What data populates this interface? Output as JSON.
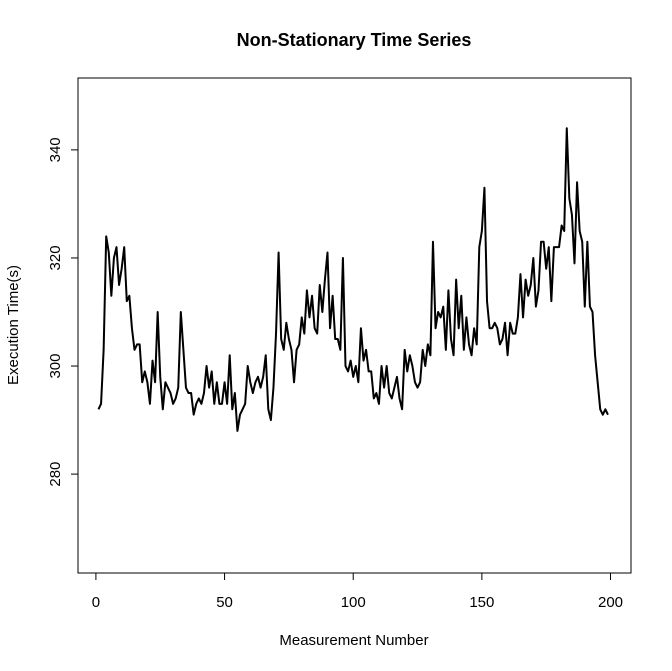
{
  "chart_data": {
    "type": "line",
    "title": "Non-Stationary Time Series",
    "x_label": "Measurement Number",
    "y_label": "Execution Time(s)",
    "x": [
      1,
      2,
      3,
      4,
      5,
      6,
      7,
      8,
      9,
      10,
      11,
      12,
      13,
      14,
      15,
      16,
      17,
      18,
      19,
      20,
      21,
      22,
      23,
      24,
      25,
      26,
      27,
      28,
      29,
      30,
      31,
      32,
      33,
      34,
      35,
      36,
      37,
      38,
      39,
      40,
      41,
      42,
      43,
      44,
      45,
      46,
      47,
      48,
      49,
      50,
      51,
      52,
      53,
      54,
      55,
      56,
      57,
      58,
      59,
      60,
      61,
      62,
      63,
      64,
      65,
      66,
      67,
      68,
      69,
      70,
      71,
      72,
      73,
      74,
      75,
      76,
      77,
      78,
      79,
      80,
      81,
      82,
      83,
      84,
      85,
      86,
      87,
      88,
      89,
      90,
      91,
      92,
      93,
      94,
      95,
      96,
      97,
      98,
      99,
      100,
      101,
      102,
      103,
      104,
      105,
      106,
      107,
      108,
      109,
      110,
      111,
      112,
      113,
      114,
      115,
      116,
      117,
      118,
      119,
      120,
      121,
      122,
      123,
      124,
      125,
      126,
      127,
      128,
      129,
      130,
      131,
      132,
      133,
      134,
      135,
      136,
      137,
      138,
      139,
      140,
      141,
      142,
      143,
      144,
      145,
      146,
      147,
      148,
      149,
      150,
      151,
      152,
      153,
      154,
      155,
      156,
      157,
      158,
      159,
      160,
      161,
      162,
      163,
      164,
      165,
      166,
      167,
      168,
      169,
      170,
      171,
      172,
      173,
      174,
      175,
      176,
      177,
      178,
      179,
      180,
      181,
      182,
      183,
      184,
      185,
      186,
      187,
      188,
      189,
      190,
      191,
      192,
      193,
      194,
      195,
      196,
      197,
      198,
      199
    ],
    "series": [
      {
        "color": "#000000",
        "values": [
          292,
          293,
          303,
          324,
          321,
          313,
          320,
          322,
          315,
          318,
          322,
          312,
          313,
          307,
          303,
          304,
          304,
          297,
          299,
          297,
          293,
          301,
          297,
          310,
          298,
          292,
          297,
          296,
          295,
          293,
          294,
          296,
          310,
          303,
          296,
          295,
          295,
          291,
          293,
          294,
          293,
          295,
          300,
          296,
          299,
          293,
          297,
          293,
          293,
          297,
          293,
          302,
          292,
          295,
          288,
          291,
          292,
          293,
          300,
          297,
          295,
          297,
          298,
          296,
          298,
          302,
          292,
          290,
          296,
          306,
          321,
          305,
          303,
          308,
          305,
          303,
          297,
          303,
          304,
          309,
          306,
          314,
          309,
          313,
          307,
          306,
          315,
          310,
          316,
          321,
          307,
          313,
          305,
          305,
          303,
          320,
          300,
          299,
          301,
          298,
          300,
          297,
          307,
          301,
          303,
          299,
          299,
          294,
          295,
          293,
          300,
          296,
          300,
          295,
          294,
          296,
          298,
          294,
          292,
          303,
          299,
          302,
          300,
          297,
          296,
          297,
          303,
          300,
          304,
          302,
          323,
          307,
          310,
          309,
          311,
          303,
          314,
          305,
          302,
          316,
          307,
          313,
          303,
          309,
          304,
          302,
          307,
          304,
          322,
          325,
          333,
          312,
          307,
          307,
          308,
          307,
          304,
          305,
          308,
          302,
          308,
          306,
          306,
          309,
          317,
          309,
          316,
          313,
          315,
          320,
          311,
          314,
          323,
          323,
          318,
          322,
          312,
          322,
          322,
          322,
          326,
          325,
          344,
          331,
          328,
          319,
          334,
          325,
          323,
          311,
          323,
          311,
          310,
          302,
          297,
          292,
          291,
          292,
          291
        ]
      }
    ],
    "xlim": [
      -6.96,
      207.96
    ],
    "ylim": [
      261.7,
      353.3
    ],
    "xticks": [
      0,
      50,
      100,
      150,
      200
    ],
    "yticks": [
      280,
      300,
      320,
      340
    ]
  }
}
